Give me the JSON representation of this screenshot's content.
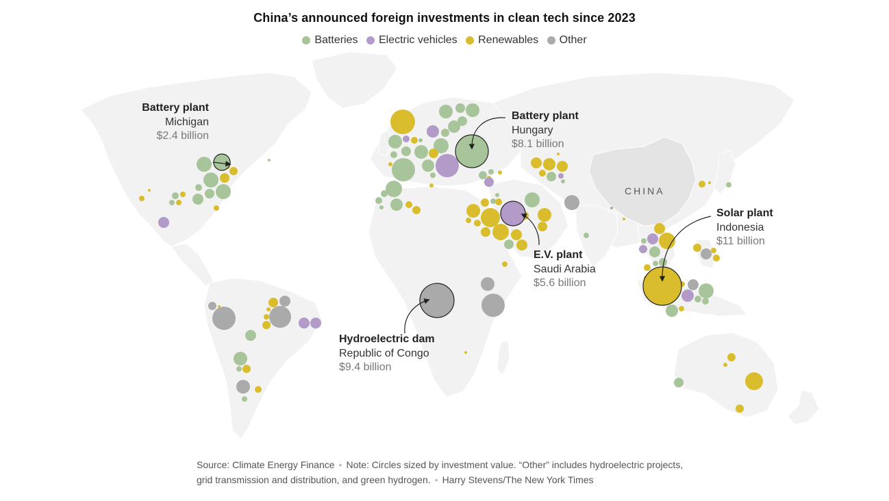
{
  "title": "China’s announced foreign investments in clean tech since 2023",
  "legend": [
    {
      "label": "Batteries",
      "color": "#a8c49a"
    },
    {
      "label": "Electric vehicles",
      "color": "#b29ac9"
    },
    {
      "label": "Renewables",
      "color": "#d9bd2c"
    },
    {
      "label": "Other",
      "color": "#aaaaaa"
    }
  ],
  "map": {
    "country_label": "CHINA",
    "land_color": "#f2f2f2",
    "border_color": "#ffffff",
    "highlight_color": "#e4e4e4"
  },
  "annotations": {
    "michigan": {
      "type": "Battery plant",
      "place": "Michigan",
      "value": "$2.4 billion"
    },
    "hungary": {
      "type": "Battery plant",
      "place": "Hungary",
      "value": "$8.1 billion"
    },
    "saudi": {
      "type": "E.V. plant",
      "place": "Saudi Arabia",
      "value": "$5.6 billion"
    },
    "congo": {
      "type": "Hydroelectric dam",
      "place": "Republic of Congo",
      "value": "$9.4 billion"
    },
    "indonesia": {
      "type": "Solar plant",
      "place": "Indonesia",
      "value": "$11 billion"
    }
  },
  "footer": {
    "source": "Source: Climate Energy Finance",
    "note": "Note: Circles sized by investment value. “Other” includes hydroelectric projects, grid transmission and distribution, and green hydrogen.",
    "credit": "Harry Stevens/The New York Times"
  }
}
